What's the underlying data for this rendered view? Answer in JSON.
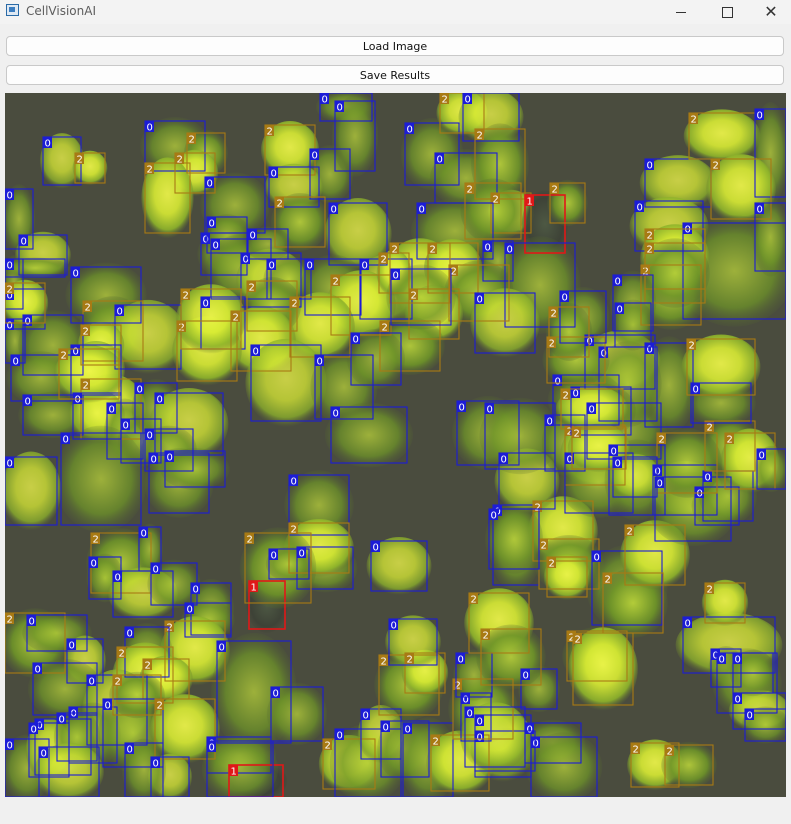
{
  "window": {
    "title": "CellVisionAI",
    "min_symbol": "—",
    "close_symbol": "✕"
  },
  "toolbar": {
    "load_label": "Load Image",
    "save_label": "Save Results"
  },
  "colors": {
    "class0": "#1c1cd6",
    "class1": "#e01818",
    "class2": "#a87a14",
    "background": "#4a4c3e",
    "cell_bright": "#dcec36",
    "cell_green": "#7fb028"
  },
  "detections": [
    {
      "c": 0,
      "b": [
        38,
        44,
        38,
        48
      ]
    },
    {
      "c": 2,
      "b": [
        70,
        60,
        30,
        30
      ]
    },
    {
      "c": 0,
      "b": [
        140,
        28,
        60,
        50
      ]
    },
    {
      "c": 2,
      "b": [
        182,
        40,
        38,
        40
      ]
    },
    {
      "c": 2,
      "b": [
        170,
        60,
        40,
        40
      ]
    },
    {
      "c": 2,
      "b": [
        140,
        70,
        45,
        70
      ]
    },
    {
      "c": 0,
      "b": [
        200,
        84,
        60,
        56
      ]
    },
    {
      "c": 0,
      "b": [
        0,
        96,
        28,
        60
      ]
    },
    {
      "c": 0,
      "b": [
        14,
        142,
        48,
        40
      ]
    },
    {
      "c": 0,
      "b": [
        0,
        166,
        18,
        50
      ]
    },
    {
      "c": 2,
      "b": [
        260,
        32,
        50,
        50
      ]
    },
    {
      "c": 0,
      "b": [
        305,
        56,
        40,
        50
      ]
    },
    {
      "c": 0,
      "b": [
        264,
        74,
        50,
        40
      ]
    },
    {
      "c": 0,
      "b": [
        315,
        0,
        52,
        28
      ]
    },
    {
      "c": 0,
      "b": [
        330,
        8,
        40,
        70
      ]
    },
    {
      "c": 2,
      "b": [
        270,
        104,
        50,
        50
      ]
    },
    {
      "c": 0,
      "b": [
        324,
        110,
        58,
        62
      ]
    },
    {
      "c": 0,
      "b": [
        400,
        30,
        54,
        62
      ]
    },
    {
      "c": 0,
      "b": [
        430,
        60,
        62,
        50
      ]
    },
    {
      "c": 2,
      "b": [
        435,
        0,
        44,
        40
      ]
    },
    {
      "c": 0,
      "b": [
        458,
        0,
        56,
        48
      ]
    },
    {
      "c": 2,
      "b": [
        470,
        36,
        50,
        70
      ]
    },
    {
      "c": 2,
      "b": [
        486,
        100,
        40,
        40
      ]
    },
    {
      "c": 1,
      "b": [
        520,
        102,
        40,
        58
      ]
    },
    {
      "c": 2,
      "b": [
        545,
        90,
        35,
        40
      ]
    },
    {
      "c": 0,
      "b": [
        412,
        110,
        76,
        56
      ]
    },
    {
      "c": 0,
      "b": [
        478,
        148,
        30,
        40
      ]
    },
    {
      "c": 0,
      "b": [
        500,
        150,
        70,
        84
      ]
    },
    {
      "c": 0,
      "b": [
        640,
        66,
        66,
        48
      ]
    },
    {
      "c": 2,
      "b": [
        684,
        20,
        66,
        46
      ]
    },
    {
      "c": 0,
      "b": [
        750,
        16,
        31,
        88
      ]
    },
    {
      "c": 2,
      "b": [
        706,
        66,
        60,
        60
      ]
    },
    {
      "c": 0,
      "b": [
        630,
        108,
        68,
        50
      ]
    },
    {
      "c": 0,
      "b": [
        678,
        130,
        103,
        96
      ]
    },
    {
      "c": 2,
      "b": [
        640,
        136,
        60,
        60
      ]
    },
    {
      "c": 0,
      "b": [
        750,
        110,
        31,
        68
      ]
    },
    {
      "c": 2,
      "b": [
        636,
        172,
        60,
        60
      ]
    },
    {
      "c": 0,
      "b": [
        0,
        166,
        60,
        18
      ]
    },
    {
      "c": 0,
      "b": [
        66,
        174,
        70,
        56
      ]
    },
    {
      "c": 2,
      "b": [
        78,
        208,
        60,
        60
      ]
    },
    {
      "c": 0,
      "b": [
        110,
        212,
        66,
        64
      ]
    },
    {
      "c": 0,
      "b": [
        196,
        140,
        46,
        42
      ]
    },
    {
      "c": 0,
      "b": [
        202,
        124,
        40,
        36
      ]
    },
    {
      "c": 0,
      "b": [
        206,
        146,
        60,
        60
      ]
    },
    {
      "c": 0,
      "b": [
        236,
        160,
        60,
        54
      ]
    },
    {
      "c": 0,
      "b": [
        243,
        136,
        40,
        30
      ]
    },
    {
      "c": 0,
      "b": [
        262,
        166,
        44,
        40
      ]
    },
    {
      "c": 0,
      "b": [
        300,
        166,
        56,
        56
      ]
    },
    {
      "c": 0,
      "b": [
        355,
        166,
        52,
        60
      ]
    },
    {
      "c": 2,
      "b": [
        385,
        150,
        60,
        60
      ]
    },
    {
      "c": 2,
      "b": [
        423,
        150,
        50,
        50
      ]
    },
    {
      "c": 2,
      "b": [
        444,
        172,
        60,
        56
      ]
    },
    {
      "c": 0,
      "b": [
        470,
        200,
        60,
        60
      ]
    },
    {
      "c": 2,
      "b": [
        404,
        196,
        50,
        50
      ]
    },
    {
      "c": 2,
      "b": [
        375,
        228,
        60,
        50
      ]
    },
    {
      "c": 2,
      "b": [
        326,
        182,
        60,
        60
      ]
    },
    {
      "c": 2,
      "b": [
        285,
        204,
        60,
        60
      ]
    },
    {
      "c": 2,
      "b": [
        242,
        188,
        50,
        50
      ]
    },
    {
      "c": 0,
      "b": [
        196,
        204,
        44,
        52
      ]
    },
    {
      "c": 2,
      "b": [
        226,
        218,
        60,
        60
      ]
    },
    {
      "c": 0,
      "b": [
        246,
        252,
        70,
        76
      ]
    },
    {
      "c": 0,
      "b": [
        310,
        262,
        58,
        64
      ]
    },
    {
      "c": 0,
      "b": [
        326,
        314,
        76,
        56
      ]
    },
    {
      "c": 0,
      "b": [
        346,
        240,
        50,
        52
      ]
    },
    {
      "c": 2,
      "b": [
        172,
        228,
        60,
        60
      ]
    },
    {
      "c": 0,
      "b": [
        0,
        226,
        20,
        44
      ]
    },
    {
      "c": 0,
      "b": [
        18,
        222,
        60,
        60
      ]
    },
    {
      "c": 2,
      "b": [
        76,
        232,
        40,
        40
      ]
    },
    {
      "c": 0,
      "b": [
        66,
        252,
        50,
        50
      ]
    },
    {
      "c": 0,
      "b": [
        6,
        262,
        60,
        46
      ]
    },
    {
      "c": 0,
      "b": [
        18,
        302,
        60,
        40
      ]
    },
    {
      "c": 2,
      "b": [
        76,
        286,
        60,
        60
      ]
    },
    {
      "c": 0,
      "b": [
        68,
        300,
        48,
        46
      ]
    },
    {
      "c": 0,
      "b": [
        102,
        310,
        36,
        56
      ]
    },
    {
      "c": 0,
      "b": [
        116,
        326,
        40,
        44
      ]
    },
    {
      "c": 0,
      "b": [
        130,
        290,
        42,
        50
      ]
    },
    {
      "c": 0,
      "b": [
        150,
        300,
        68,
        62
      ]
    },
    {
      "c": 0,
      "b": [
        56,
        340,
        80,
        92
      ]
    },
    {
      "c": 0,
      "b": [
        140,
        336,
        48,
        42
      ]
    },
    {
      "c": 0,
      "b": [
        144,
        360,
        60,
        60
      ]
    },
    {
      "c": 0,
      "b": [
        0,
        364,
        52,
        68
      ]
    },
    {
      "c": 2,
      "b": [
        86,
        440,
        60,
        60
      ]
    },
    {
      "c": 0,
      "b": [
        134,
        434,
        22,
        44
      ]
    },
    {
      "c": 0,
      "b": [
        84,
        464,
        32,
        42
      ]
    },
    {
      "c": 0,
      "b": [
        108,
        478,
        60,
        46
      ]
    },
    {
      "c": 0,
      "b": [
        146,
        470,
        46,
        42
      ]
    },
    {
      "c": 0,
      "b": [
        186,
        490,
        40,
        52
      ]
    },
    {
      "c": 0,
      "b": [
        180,
        510,
        46,
        34
      ]
    },
    {
      "c": 2,
      "b": [
        160,
        528,
        60,
        60
      ]
    },
    {
      "c": 0,
      "b": [
        120,
        534,
        44,
        50
      ]
    },
    {
      "c": 2,
      "b": [
        0,
        520,
        60,
        60
      ]
    },
    {
      "c": 0,
      "b": [
        22,
        522,
        60,
        36
      ]
    },
    {
      "c": 0,
      "b": [
        62,
        546,
        36,
        44
      ]
    },
    {
      "c": 0,
      "b": [
        28,
        570,
        64,
        52
      ]
    },
    {
      "c": 2,
      "b": [
        112,
        554,
        56,
        56
      ]
    },
    {
      "c": 2,
      "b": [
        138,
        566,
        46,
        40
      ]
    },
    {
      "c": 0,
      "b": [
        82,
        582,
        60,
        70
      ]
    },
    {
      "c": 0,
      "b": [
        64,
        614,
        48,
        56
      ]
    },
    {
      "c": 0,
      "b": [
        98,
        606,
        60,
        68
      ]
    },
    {
      "c": 2,
      "b": [
        108,
        582,
        48,
        40
      ]
    },
    {
      "c": 2,
      "b": [
        150,
        606,
        60,
        60
      ]
    },
    {
      "c": 0,
      "b": [
        212,
        548,
        74,
        102
      ]
    },
    {
      "c": 0,
      "b": [
        266,
        594,
        52,
        54
      ]
    },
    {
      "c": 0,
      "b": [
        202,
        644,
        64,
        36
      ]
    },
    {
      "c": 0,
      "b": [
        146,
        664,
        38,
        40
      ]
    },
    {
      "c": 0,
      "b": [
        120,
        650,
        38,
        54
      ]
    },
    {
      "c": 0,
      "b": [
        30,
        626,
        56,
        56
      ]
    },
    {
      "c": 0,
      "b": [
        0,
        646,
        44,
        58
      ]
    },
    {
      "c": 0,
      "b": [
        24,
        630,
        40,
        54
      ]
    },
    {
      "c": 0,
      "b": [
        52,
        620,
        40,
        48
      ]
    },
    {
      "c": 2,
      "b": [
        318,
        646,
        52,
        50
      ]
    },
    {
      "c": 0,
      "b": [
        330,
        636,
        66,
        68
      ]
    },
    {
      "c": 0,
      "b": [
        356,
        616,
        40,
        50
      ]
    },
    {
      "c": 0,
      "b": [
        376,
        628,
        48,
        56
      ]
    },
    {
      "c": 0,
      "b": [
        398,
        630,
        50,
        74
      ]
    },
    {
      "c": 2,
      "b": [
        426,
        642,
        58,
        56
      ]
    },
    {
      "c": 0,
      "b": [
        470,
        622,
        56,
        62
      ]
    },
    {
      "c": 0,
      "b": [
        520,
        630,
        56,
        40
      ]
    },
    {
      "c": 0,
      "b": [
        526,
        644,
        66,
        60
      ]
    },
    {
      "c": 2,
      "b": [
        626,
        650,
        48,
        44
      ]
    },
    {
      "c": 2,
      "b": [
        660,
        652,
        48,
        40
      ]
    },
    {
      "c": 0,
      "b": [
        470,
        638,
        60,
        40
      ]
    },
    {
      "c": 0,
      "b": [
        456,
        600,
        30,
        48
      ]
    },
    {
      "c": 2,
      "b": [
        448,
        586,
        60,
        60
      ]
    },
    {
      "c": 0,
      "b": [
        460,
        614,
        60,
        60
      ]
    },
    {
      "c": 0,
      "b": [
        516,
        576,
        36,
        40
      ]
    },
    {
      "c": 2,
      "b": [
        374,
        562,
        60,
        60
      ]
    },
    {
      "c": 2,
      "b": [
        400,
        560,
        40,
        40
      ]
    },
    {
      "c": 0,
      "b": [
        384,
        526,
        48,
        46
      ]
    },
    {
      "c": 0,
      "b": [
        451,
        560,
        36,
        44
      ]
    },
    {
      "c": 0,
      "b": [
        488,
        412,
        46,
        80
      ]
    },
    {
      "c": 2,
      "b": [
        528,
        408,
        60,
        60
      ]
    },
    {
      "c": 2,
      "b": [
        534,
        446,
        60,
        50
      ]
    },
    {
      "c": 2,
      "b": [
        542,
        464,
        40,
        40
      ]
    },
    {
      "c": 0,
      "b": [
        587,
        458,
        70,
        74
      ]
    },
    {
      "c": 2,
      "b": [
        598,
        480,
        60,
        60
      ]
    },
    {
      "c": 0,
      "b": [
        678,
        524,
        92,
        56
      ]
    },
    {
      "c": 2,
      "b": [
        700,
        490,
        40,
        40
      ]
    },
    {
      "c": 0,
      "b": [
        706,
        556,
        30,
        38
      ]
    },
    {
      "c": 0,
      "b": [
        712,
        560,
        60,
        60
      ]
    },
    {
      "c": 0,
      "b": [
        728,
        600,
        53,
        36
      ]
    },
    {
      "c": 0,
      "b": [
        740,
        616,
        41,
        32
      ]
    },
    {
      "c": 0,
      "b": [
        728,
        560,
        40,
        40
      ]
    },
    {
      "c": 2,
      "b": [
        620,
        432,
        60,
        60
      ]
    },
    {
      "c": 2,
      "b": [
        562,
        538,
        60,
        50
      ]
    },
    {
      "c": 2,
      "b": [
        568,
        540,
        60,
        72
      ]
    },
    {
      "c": 2,
      "b": [
        464,
        500,
        60,
        60
      ]
    },
    {
      "c": 2,
      "b": [
        476,
        536,
        60,
        56
      ]
    },
    {
      "c": 0,
      "b": [
        366,
        448,
        56,
        50
      ]
    },
    {
      "c": 0,
      "b": [
        292,
        454,
        56,
        42
      ]
    },
    {
      "c": 0,
      "b": [
        284,
        382,
        60,
        60
      ]
    },
    {
      "c": 2,
      "b": [
        284,
        430,
        60,
        50
      ]
    },
    {
      "c": 1,
      "b": [
        244,
        488,
        36,
        48
      ]
    },
    {
      "c": 2,
      "b": [
        240,
        440,
        66,
        70
      ]
    },
    {
      "c": 0,
      "b": [
        264,
        456,
        40,
        30
      ]
    },
    {
      "c": 0,
      "b": [
        484,
        416,
        50,
        60
      ]
    },
    {
      "c": 0,
      "b": [
        494,
        360,
        56,
        56
      ]
    },
    {
      "c": 0,
      "b": [
        452,
        308,
        62,
        64
      ]
    },
    {
      "c": 0,
      "b": [
        480,
        310,
        70,
        66
      ]
    },
    {
      "c": 0,
      "b": [
        540,
        322,
        40,
        56
      ]
    },
    {
      "c": 2,
      "b": [
        560,
        332,
        60,
        60
      ]
    },
    {
      "c": 0,
      "b": [
        560,
        360,
        68,
        60
      ]
    },
    {
      "c": 0,
      "b": [
        582,
        310,
        74,
        56
      ]
    },
    {
      "c": 0,
      "b": [
        604,
        352,
        56,
        70
      ]
    },
    {
      "c": 0,
      "b": [
        648,
        372,
        64,
        50
      ]
    },
    {
      "c": 0,
      "b": [
        650,
        384,
        76,
        64
      ]
    },
    {
      "c": 0,
      "b": [
        690,
        394,
        44,
        38
      ]
    },
    {
      "c": 0,
      "b": [
        698,
        378,
        50,
        50
      ]
    },
    {
      "c": 2,
      "b": [
        700,
        328,
        50,
        50
      ]
    },
    {
      "c": 2,
      "b": [
        720,
        340,
        50,
        56
      ]
    },
    {
      "c": 0,
      "b": [
        752,
        356,
        29,
        40
      ]
    },
    {
      "c": 2,
      "b": [
        652,
        340,
        60,
        60
      ]
    },
    {
      "c": 0,
      "b": [
        608,
        364,
        44,
        40
      ]
    },
    {
      "c": 0,
      "b": [
        640,
        250,
        48,
        84
      ]
    },
    {
      "c": 0,
      "b": [
        686,
        290,
        60,
        40
      ]
    },
    {
      "c": 2,
      "b": [
        682,
        246,
        68,
        56
      ]
    },
    {
      "c": 0,
      "b": [
        580,
        242,
        70,
        54
      ]
    },
    {
      "c": 0,
      "b": [
        594,
        254,
        58,
        74
      ]
    },
    {
      "c": 0,
      "b": [
        548,
        282,
        66,
        50
      ]
    },
    {
      "c": 0,
      "b": [
        566,
        294,
        60,
        48
      ]
    },
    {
      "c": 2,
      "b": [
        640,
        150,
        60,
        60
      ]
    },
    {
      "c": 0,
      "b": [
        608,
        182,
        40,
        56
      ]
    },
    {
      "c": 0,
      "b": [
        610,
        210,
        36,
        44
      ]
    },
    {
      "c": 2,
      "b": [
        542,
        244,
        58,
        46
      ]
    },
    {
      "c": 2,
      "b": [
        556,
        296,
        62,
        40
      ]
    },
    {
      "c": 2,
      "b": [
        567,
        334,
        54,
        42
      ]
    },
    {
      "c": 0,
      "b": [
        555,
        198,
        46,
        52
      ]
    },
    {
      "c": 0,
      "b": [
        0,
        196,
        40,
        40
      ]
    },
    {
      "c": 2,
      "b": [
        0,
        190,
        40,
        40
      ]
    },
    {
      "c": 0,
      "b": [
        160,
        358,
        60,
        36
      ]
    },
    {
      "c": 2,
      "b": [
        54,
        256,
        60,
        50
      ]
    },
    {
      "c": 1,
      "b": [
        224,
        672,
        54,
        32
      ]
    },
    {
      "c": 0,
      "b": [
        34,
        654,
        60,
        50
      ]
    },
    {
      "c": 0,
      "b": [
        202,
        648,
        66,
        56
      ]
    },
    {
      "c": 2,
      "b": [
        176,
        196,
        60,
        60
      ]
    },
    {
      "c": 2,
      "b": [
        460,
        90,
        56,
        56
      ]
    },
    {
      "c": 2,
      "b": [
        374,
        160,
        30,
        40
      ]
    },
    {
      "c": 0,
      "b": [
        386,
        176,
        60,
        56
      ]
    },
    {
      "c": 2,
      "b": [
        544,
        214,
        40,
        50
      ]
    }
  ]
}
